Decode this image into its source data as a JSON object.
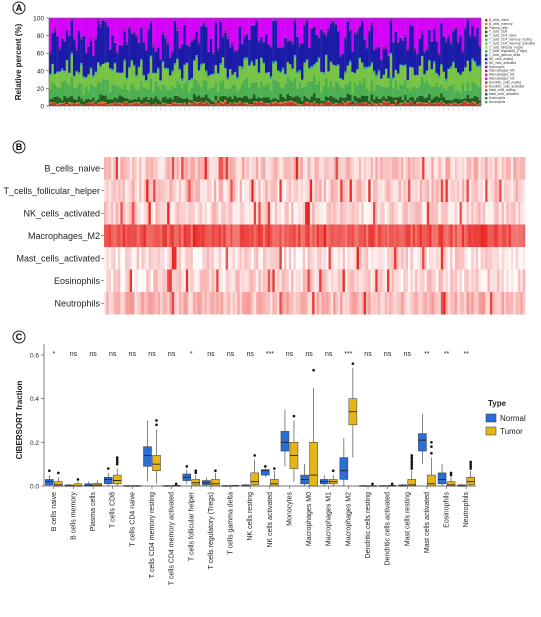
{
  "panels": {
    "a": {
      "label": "A"
    },
    "b": {
      "label": "B"
    },
    "c": {
      "label": "C"
    }
  },
  "chart_data": [
    {
      "type": "bar",
      "stacked": true,
      "ylabel": "Relative percent (%)",
      "ylim": [
        0,
        100
      ],
      "yticks": [
        "0",
        "20",
        "40",
        "60",
        "80",
        "100"
      ],
      "n_samples": 180,
      "stack_colors": [
        "#c0392b",
        "#e67e22",
        "#8b6914",
        "#1b5e20",
        "#2e7d32",
        "#4caf50",
        "#76c442",
        "#a5d63f",
        "#26a69a",
        "#3949ab",
        "#1a1aa8",
        "#3b5bdb",
        "#7b1fa2",
        "#c2185b",
        "#e91e63",
        "#d500f9"
      ],
      "series": [
        {
          "name": "B_cells_naive"
        },
        {
          "name": "B_cells_memory"
        },
        {
          "name": "Plasma_cells"
        },
        {
          "name": "T_cells_CD8"
        },
        {
          "name": "T_cells_CD4_naive"
        },
        {
          "name": "T_cells_CD4_memory_resting"
        },
        {
          "name": "T_cells_CD4_memory_activated"
        },
        {
          "name": "T_cells_follicular_helper"
        },
        {
          "name": "T_cells_regulatory_(Tregs)"
        },
        {
          "name": "T_cells_gamma_delta"
        },
        {
          "name": "NK_cells_resting"
        },
        {
          "name": "NK_cells_activated"
        },
        {
          "name": "Monocytes"
        },
        {
          "name": "Macrophages_M0"
        },
        {
          "name": "Macrophages_M1"
        },
        {
          "name": "Macrophages_M2"
        },
        {
          "name": "Dendritic_cells_resting"
        },
        {
          "name": "Dendritic_cells_activated"
        },
        {
          "name": "Mast_cells_resting"
        },
        {
          "name": "Mast_cells_activated"
        },
        {
          "name": "Eosinophils"
        },
        {
          "name": "Neutrophils"
        }
      ],
      "approx_layers": {
        "red_base": [
          0,
          4
        ],
        "green_top": [
          30,
          60
        ],
        "blue_top": [
          92,
          100
        ]
      }
    },
    {
      "type": "heatmap",
      "rows": [
        "B_cells_naive",
        "T_cells_follicular_helper",
        "NK_cells_activated",
        "Macrophages_M2",
        "Mast_cells_activated",
        "Eosinophils",
        "Neutrophils"
      ],
      "row_intensity": [
        0.25,
        0.22,
        0.2,
        0.75,
        0.15,
        0.18,
        0.3
      ],
      "n_columns": 180,
      "color_low": "#ffffff",
      "color_high": "#e8201a"
    },
    {
      "type": "box",
      "ylabel": "CIBERSORT fraction",
      "ylim": [
        0,
        0.65
      ],
      "yticks": [
        "0.0",
        "0.2",
        "0.4",
        "0.6"
      ],
      "legend_title": "Type",
      "series": [
        {
          "name": "Normal",
          "color": "#2b6fd6"
        },
        {
          "name": "Tumor",
          "color": "#e6b619"
        }
      ],
      "categories": [
        "B cells naive",
        "B cells memory",
        "Plasma cells",
        "T cells CD8",
        "T cells CD4 naive",
        "T cells CD4 memory resting",
        "T cells CD4 memory activated",
        "T cells follicular helper",
        "T cells regulatory (Tregs)",
        "T cells gamma delta",
        "NK cells resting",
        "NK cells activated",
        "Monocytes",
        "Macrophages M0",
        "Macrophages M1",
        "Macrophages M2",
        "Dendritic cells resting",
        "Dendritic cells activated",
        "Mast cells resting",
        "Mast cells activated",
        "Eosinophils",
        "Neutrophils"
      ],
      "significance": [
        "*",
        "ns",
        "ns",
        "ns",
        "ns",
        "ns",
        "ns",
        "*",
        "ns",
        "ns",
        "ns",
        "***",
        "ns",
        "ns",
        "ns",
        "***",
        "ns",
        "ns",
        "ns",
        "**",
        "**",
        "**"
      ],
      "normal": [
        {
          "q1": 0.005,
          "med": 0.02,
          "q3": 0.03,
          "lo": 0,
          "hi": 0.05,
          "out": [
            0.07
          ]
        },
        {
          "q1": 0,
          "med": 0,
          "q3": 0.005,
          "lo": 0,
          "hi": 0.01,
          "out": []
        },
        {
          "q1": 0,
          "med": 0.003,
          "q3": 0.01,
          "lo": 0,
          "hi": 0.02,
          "out": []
        },
        {
          "q1": 0.01,
          "med": 0.03,
          "q3": 0.04,
          "lo": 0,
          "hi": 0.06,
          "out": [
            0.08
          ]
        },
        {
          "q1": 0,
          "med": 0,
          "q3": 0.002,
          "lo": 0,
          "hi": 0.004,
          "out": []
        },
        {
          "q1": 0.09,
          "med": 0.14,
          "q3": 0.18,
          "lo": 0.02,
          "hi": 0.3,
          "out": []
        },
        {
          "q1": 0,
          "med": 0,
          "q3": 0.002,
          "lo": 0,
          "hi": 0.004,
          "out": []
        },
        {
          "q1": 0.025,
          "med": 0.04,
          "q3": 0.055,
          "lo": 0.01,
          "hi": 0.075,
          "out": [
            0.09
          ]
        },
        {
          "q1": 0.005,
          "med": 0.015,
          "q3": 0.025,
          "lo": 0,
          "hi": 0.04,
          "out": []
        },
        {
          "q1": 0,
          "med": 0,
          "q3": 0.002,
          "lo": 0,
          "hi": 0.004,
          "out": []
        },
        {
          "q1": 0,
          "med": 0,
          "q3": 0.005,
          "lo": 0,
          "hi": 0.01,
          "out": []
        },
        {
          "q1": 0.05,
          "med": 0.07,
          "q3": 0.075,
          "lo": 0.04,
          "hi": 0.08,
          "out": [
            0.09
          ]
        },
        {
          "q1": 0.16,
          "med": 0.2,
          "q3": 0.25,
          "lo": 0.09,
          "hi": 0.35,
          "out": []
        },
        {
          "q1": 0.01,
          "med": 0.03,
          "q3": 0.05,
          "lo": 0,
          "hi": 0.1,
          "out": []
        },
        {
          "q1": 0.01,
          "med": 0.02,
          "q3": 0.03,
          "lo": 0,
          "hi": 0.05,
          "out": []
        },
        {
          "q1": 0.03,
          "med": 0.07,
          "q3": 0.13,
          "lo": 0,
          "hi": 0.22,
          "out": []
        },
        {
          "q1": 0,
          "med": 0,
          "q3": 0.002,
          "lo": 0,
          "hi": 0.004,
          "out": []
        },
        {
          "q1": 0,
          "med": 0,
          "q3": 0.002,
          "lo": 0,
          "hi": 0.004,
          "out": []
        },
        {
          "q1": 0,
          "med": 0,
          "q3": 0.005,
          "lo": 0,
          "hi": 0.01,
          "out": []
        },
        {
          "q1": 0.16,
          "med": 0.21,
          "q3": 0.24,
          "lo": 0.1,
          "hi": 0.33,
          "out": []
        },
        {
          "q1": 0.01,
          "med": 0.03,
          "q3": 0.06,
          "lo": 0,
          "hi": 0.1,
          "out": []
        },
        {
          "q1": 0,
          "med": 0,
          "q3": 0.005,
          "lo": 0,
          "hi": 0.01,
          "out": []
        }
      ],
      "tumor": [
        {
          "q1": 0,
          "med": 0.005,
          "q3": 0.02,
          "lo": 0,
          "hi": 0.04,
          "out": [
            0.06
          ]
        },
        {
          "q1": 0,
          "med": 0,
          "q3": 0.01,
          "lo": 0,
          "hi": 0.02,
          "out": [
            0.03
          ]
        },
        {
          "q1": 0,
          "med": 0.004,
          "q3": 0.012,
          "lo": 0,
          "hi": 0.025,
          "out": []
        },
        {
          "q1": 0.01,
          "med": 0.025,
          "q3": 0.05,
          "lo": 0,
          "hi": 0.08,
          "out": [
            0.1,
            0.11,
            0.12,
            0.13
          ]
        },
        {
          "q1": 0,
          "med": 0,
          "q3": 0.002,
          "lo": 0,
          "hi": 0.004,
          "out": []
        },
        {
          "q1": 0.07,
          "med": 0.1,
          "q3": 0.14,
          "lo": 0.01,
          "hi": 0.26,
          "out": [
            0.28,
            0.3
          ]
        },
        {
          "q1": 0,
          "med": 0,
          "q3": 0.003,
          "lo": 0,
          "hi": 0.006,
          "out": [
            0.01
          ]
        },
        {
          "q1": 0.005,
          "med": 0.015,
          "q3": 0.03,
          "lo": 0,
          "hi": 0.05,
          "out": [
            0.06,
            0.07
          ]
        },
        {
          "q1": 0,
          "med": 0.01,
          "q3": 0.03,
          "lo": 0,
          "hi": 0.06,
          "out": [
            0.07
          ]
        },
        {
          "q1": 0,
          "med": 0,
          "q3": 0.003,
          "lo": 0,
          "hi": 0.006,
          "out": []
        },
        {
          "q1": 0.005,
          "med": 0.02,
          "q3": 0.06,
          "lo": 0,
          "hi": 0.12,
          "out": [
            0.14
          ]
        },
        {
          "q1": 0,
          "med": 0.01,
          "q3": 0.03,
          "lo": 0,
          "hi": 0.07,
          "out": [
            0.08
          ]
        },
        {
          "q1": 0.08,
          "med": 0.14,
          "q3": 0.2,
          "lo": 0.02,
          "hi": 0.3,
          "out": [
            0.32
          ]
        },
        {
          "q1": 0,
          "med": 0.05,
          "q3": 0.2,
          "lo": 0,
          "hi": 0.45,
          "out": [
            0.53
          ]
        },
        {
          "q1": 0.01,
          "med": 0.02,
          "q3": 0.03,
          "lo": 0,
          "hi": 0.05,
          "out": [
            0.07
          ]
        },
        {
          "q1": 0.28,
          "med": 0.34,
          "q3": 0.4,
          "lo": 0.13,
          "hi": 0.54,
          "out": [
            0.56
          ]
        },
        {
          "q1": 0,
          "med": 0,
          "q3": 0.002,
          "lo": 0,
          "hi": 0.004,
          "out": [
            0.01
          ]
        },
        {
          "q1": 0,
          "med": 0,
          "q3": 0.003,
          "lo": 0,
          "hi": 0.006,
          "out": [
            0.01
          ]
        },
        {
          "q1": 0,
          "med": 0.005,
          "q3": 0.03,
          "lo": 0,
          "hi": 0.07,
          "out": [
            0.08,
            0.09,
            0.1,
            0.11,
            0.12,
            0.13,
            0.14
          ]
        },
        {
          "q1": 0,
          "med": 0.01,
          "q3": 0.05,
          "lo": 0,
          "hi": 0.13,
          "out": [
            0.15,
            0.18,
            0.2
          ]
        },
        {
          "q1": 0,
          "med": 0.005,
          "q3": 0.02,
          "lo": 0,
          "hi": 0.04,
          "out": [
            0.05,
            0.06
          ]
        },
        {
          "q1": 0.005,
          "med": 0.02,
          "q3": 0.04,
          "lo": 0,
          "hi": 0.07,
          "out": [
            0.08,
            0.09,
            0.1,
            0.11
          ]
        }
      ]
    }
  ]
}
